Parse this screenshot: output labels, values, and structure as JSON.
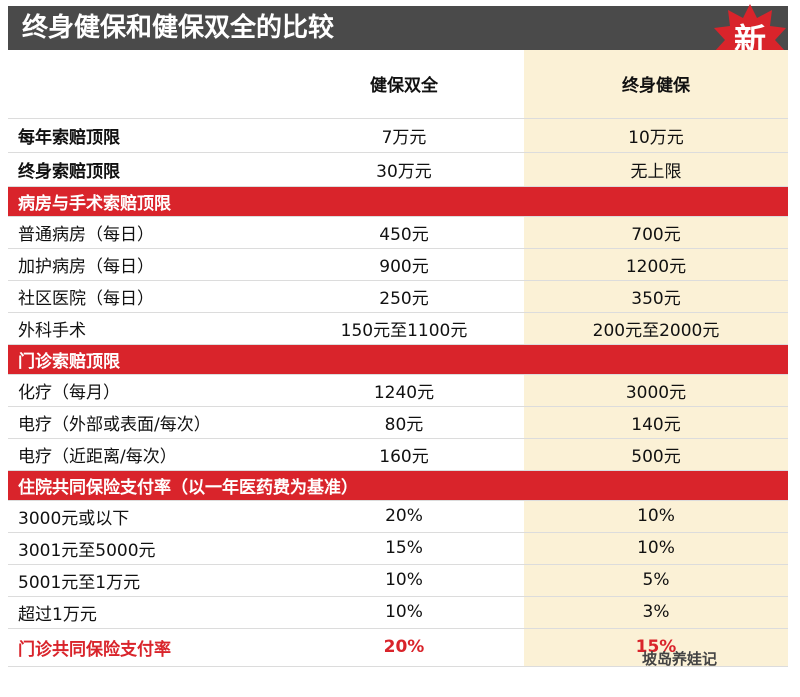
{
  "title": "终身健保和健保双全的比较",
  "badge": "新",
  "columns": [
    "",
    "健保双全",
    "终身健保"
  ],
  "top_rows": [
    {
      "label": "每年索赔顶限",
      "a": "7万元",
      "b": "10万元"
    },
    {
      "label": "终身索赔顶限",
      "a": "30万元",
      "b": "无上限"
    }
  ],
  "sections": [
    {
      "header": "病房与手术索赔顶限",
      "rows": [
        {
          "label": "普通病房（每日）",
          "a": "450元",
          "b": "700元"
        },
        {
          "label": "加护病房（每日）",
          "a": "900元",
          "b": "1200元"
        },
        {
          "label": "社区医院（每日）",
          "a": "250元",
          "b": "350元"
        },
        {
          "label": "外科手术",
          "a": "150元至1100元",
          "b": "200元至2000元"
        }
      ]
    },
    {
      "header": "门诊索赔顶限",
      "rows": [
        {
          "label": "化疗（每月）",
          "a": "1240元",
          "b": "3000元"
        },
        {
          "label": "电疗（外部或表面/每次）",
          "a": "80元",
          "b": "140元"
        },
        {
          "label": "电疗（近距离/每次）",
          "a": "160元",
          "b": "500元"
        }
      ]
    },
    {
      "header": "住院共同保险支付率（以一年医药费为基准）",
      "rows": [
        {
          "label": "3000元或以下",
          "a": "20%",
          "b": "10%"
        },
        {
          "label": "3001元至5000元",
          "a": "15%",
          "b": "10%"
        },
        {
          "label": "5001元至1万元",
          "a": "10%",
          "b": "5%"
        },
        {
          "label": "超过1万元",
          "a": "10%",
          "b": "3%"
        }
      ]
    }
  ],
  "final_row": {
    "label": "门诊共同保险支付率",
    "a": "20%",
    "b": "15%"
  },
  "watermark": "坡岛养娃记"
}
